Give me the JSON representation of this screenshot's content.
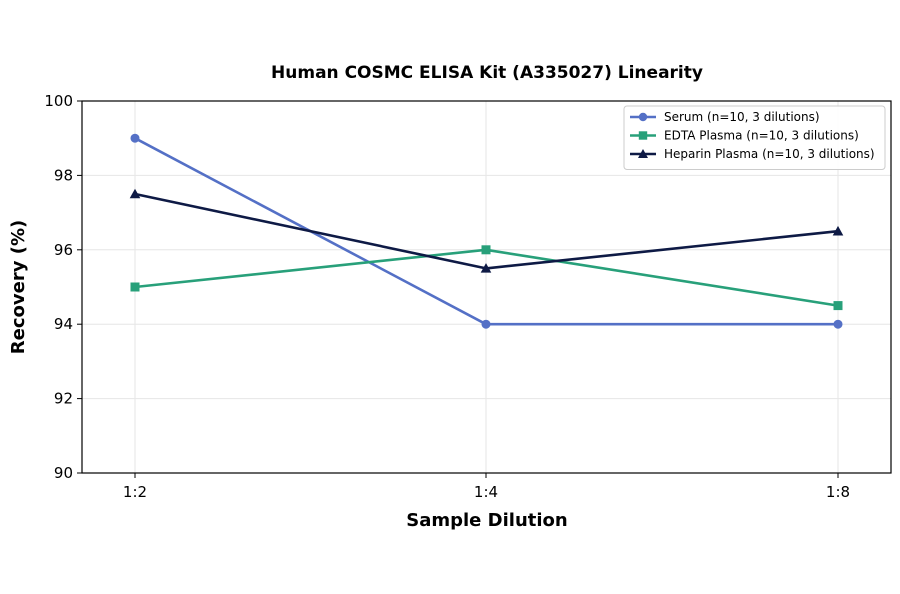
{
  "chart_data": {
    "type": "line",
    "title": "Human COSMC ELISA Kit (A335027) Linearity",
    "xlabel": "Sample Dilution",
    "ylabel": "Recovery (%)",
    "categories": [
      "1:2",
      "1:4",
      "1:8"
    ],
    "ylim": [
      90,
      100
    ],
    "yticks": [
      90,
      92,
      94,
      96,
      98,
      100
    ],
    "grid": true,
    "legend_position": "top-right",
    "series": [
      {
        "name": "Serum (n=10, 3 dilutions)",
        "values": [
          99,
          94,
          94
        ],
        "color": "#5470c6",
        "marker": "circle"
      },
      {
        "name": "EDTA Plasma (n=10, 3 dilutions)",
        "values": [
          95,
          96,
          94.5
        ],
        "color": "#28a07a",
        "marker": "square"
      },
      {
        "name": "Heparin Plasma (n=10, 3 dilutions)",
        "values": [
          97.5,
          95.5,
          96.5
        ],
        "color": "#0e1a45",
        "marker": "triangle"
      }
    ]
  }
}
